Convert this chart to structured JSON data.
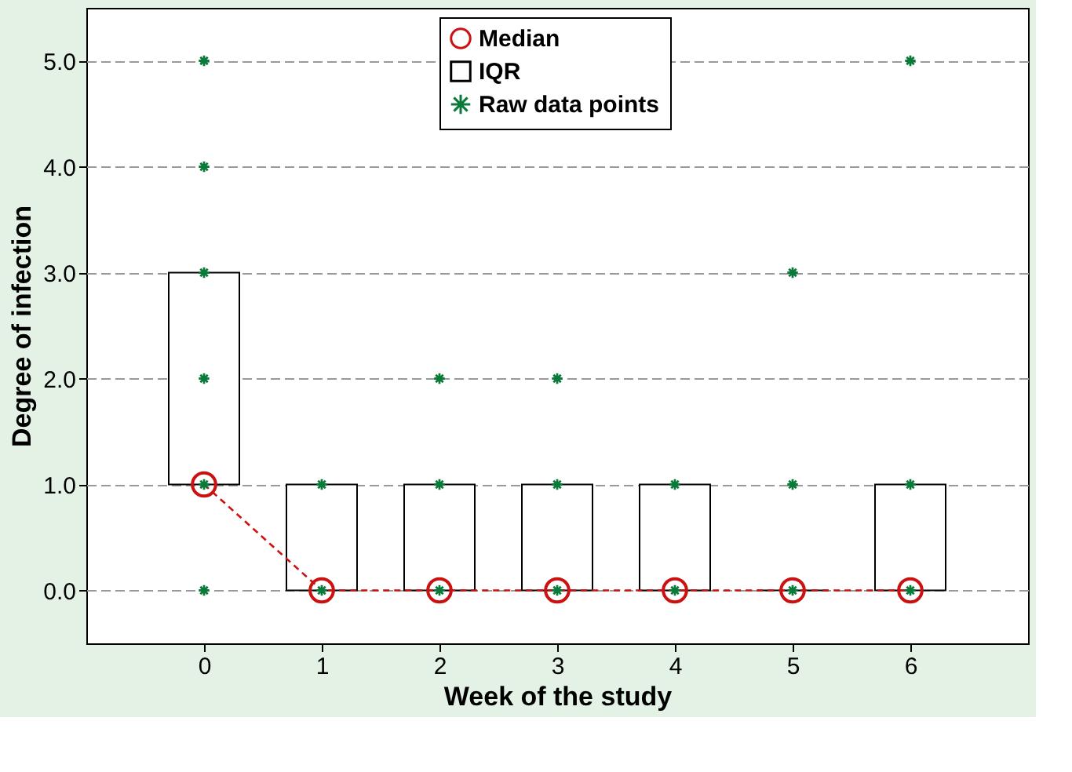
{
  "chart_data": {
    "type": "bar",
    "xlabel": "Week of the study",
    "ylabel": "Degree of infection",
    "categories": [
      "0",
      "1",
      "2",
      "3",
      "4",
      "5",
      "6"
    ],
    "ylim": [
      -0.5,
      5.5
    ],
    "yticks": [
      {
        "value": 0,
        "label": "0.0"
      },
      {
        "value": 1,
        "label": "1.0"
      },
      {
        "value": 2,
        "label": "2.0"
      },
      {
        "value": 3,
        "label": "3.0"
      },
      {
        "value": 4,
        "label": "4.0"
      },
      {
        "value": 5,
        "label": "5.0"
      }
    ],
    "grid": "y",
    "legend": "top",
    "series": [
      {
        "name": "Median",
        "type": "line",
        "color": "#cc1111",
        "values": [
          1,
          0,
          0,
          0,
          0,
          0,
          0
        ],
        "marker": "circle",
        "line_style": "dashed"
      },
      {
        "name": "IQR",
        "color": "#000000",
        "base": [
          1,
          0,
          0,
          0,
          0,
          0,
          0
        ],
        "values": [
          2,
          1,
          1,
          1,
          1,
          0,
          1
        ]
      },
      {
        "name": "Raw data points",
        "type": "scatter",
        "color": "#0a7a3a",
        "marker": "cross",
        "x": [
          "0",
          "0",
          "0",
          "0",
          "0",
          "0",
          "1",
          "1",
          "2",
          "2",
          "2",
          "3",
          "3",
          "3",
          "4",
          "4",
          "5",
          "5",
          "5",
          "6",
          "6",
          "6"
        ],
        "values": [
          0,
          1,
          2,
          3,
          4,
          5,
          0,
          1,
          0,
          1,
          2,
          0,
          1,
          2,
          0,
          1,
          0,
          1,
          3,
          0,
          1,
          5
        ]
      }
    ]
  }
}
